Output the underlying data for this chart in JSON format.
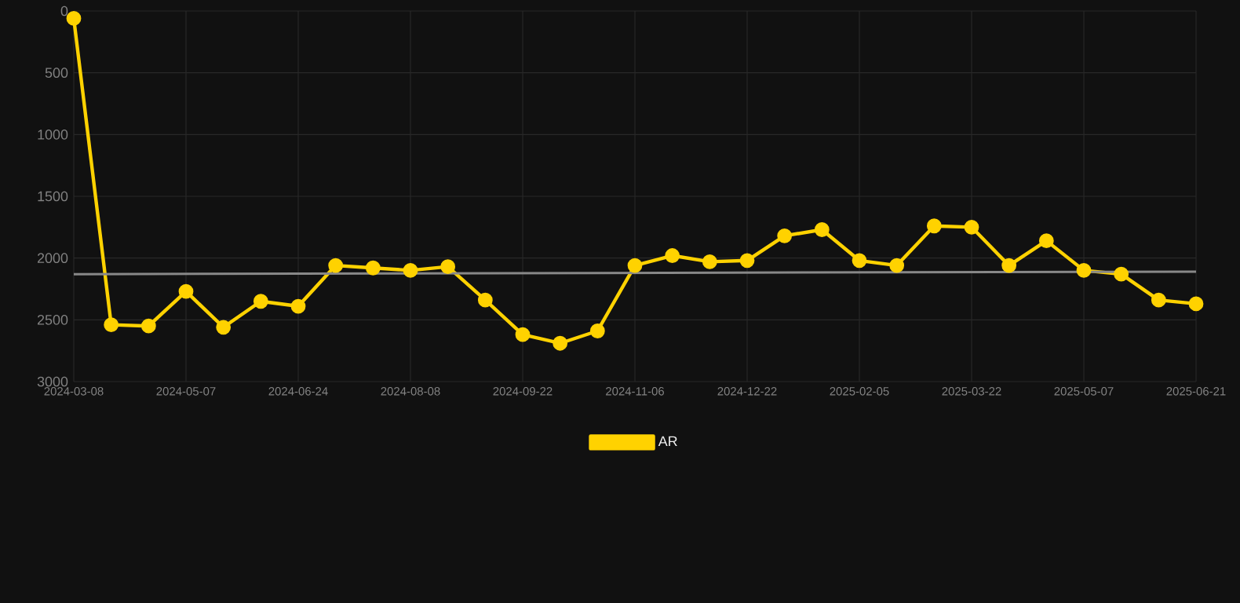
{
  "chart_data": {
    "type": "line",
    "categories": [
      "2024-03-08",
      null,
      null,
      "2024-05-07",
      null,
      null,
      "2024-06-24",
      null,
      null,
      "2024-08-08",
      null,
      null,
      "2024-09-22",
      null,
      null,
      "2024-11-06",
      null,
      null,
      "2024-12-22",
      null,
      null,
      "2025-02-05",
      null,
      null,
      "2025-03-22",
      null,
      null,
      "2025-05-07",
      null,
      null,
      "2025-06-21"
    ],
    "series": [
      {
        "name": "AR",
        "color": "#ffd200",
        "values": [
          60,
          2540,
          2550,
          2270,
          2560,
          2350,
          2390,
          2060,
          2080,
          2100,
          2070,
          2340,
          2620,
          2690,
          2590,
          2060,
          1980,
          2030,
          2020,
          1820,
          1770,
          2020,
          2060,
          1740,
          1750,
          2060,
          1860,
          2100,
          2130,
          2340,
          2370
        ]
      },
      {
        "type": "line",
        "color": "#888888",
        "marker": "none",
        "values": [
          2130,
          null,
          null,
          null,
          null,
          null,
          null,
          null,
          null,
          null,
          null,
          null,
          null,
          null,
          null,
          null,
          null,
          null,
          null,
          null,
          null,
          null,
          null,
          null,
          null,
          null,
          null,
          null,
          null,
          null,
          2110
        ]
      }
    ],
    "ylim": [
      3000,
      0
    ],
    "yticks": [
      0,
      500,
      1000,
      1500,
      2000,
      2500,
      3000
    ],
    "grid": true,
    "legend": "bottom",
    "marker": "circle",
    "line_style": "solid"
  }
}
